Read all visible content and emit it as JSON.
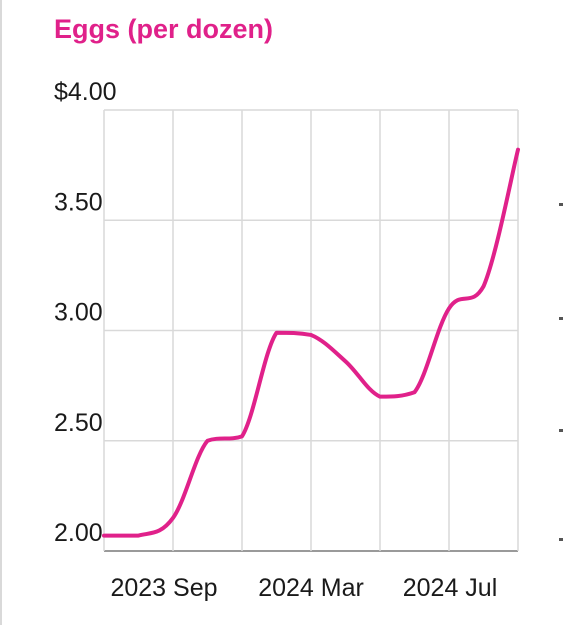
{
  "chart_data": {
    "type": "line",
    "title": "Eggs (per dozen)",
    "xlabel": "",
    "ylabel": "",
    "ylim": [
      2.0,
      4.0
    ],
    "y_ticks": [
      {
        "value": 4.0,
        "label": "$4.00"
      },
      {
        "value": 3.5,
        "label": "3.50"
      },
      {
        "value": 3.0,
        "label": "3.00"
      },
      {
        "value": 2.5,
        "label": "2.50"
      },
      {
        "value": 2.0,
        "label": "2.00"
      }
    ],
    "x_ticks": [
      "2023 Sep",
      "2024 Mar",
      "2024 Jul"
    ],
    "grid": true,
    "series": [
      {
        "color": "#e0218a",
        "points": [
          {
            "x": 0.0,
            "y": 2.07
          },
          {
            "x": 0.5,
            "y": 2.07
          },
          {
            "x": 1.0,
            "y": 2.15
          },
          {
            "x": 1.5,
            "y": 2.5
          },
          {
            "x": 2.0,
            "y": 2.52
          },
          {
            "x": 2.5,
            "y": 2.99
          },
          {
            "x": 3.0,
            "y": 2.98
          },
          {
            "x": 3.5,
            "y": 2.86
          },
          {
            "x": 4.0,
            "y": 2.7
          },
          {
            "x": 4.5,
            "y": 2.72
          },
          {
            "x": 5.0,
            "y": 3.1
          },
          {
            "x": 5.5,
            "y": 3.2
          },
          {
            "x": 6.0,
            "y": 3.82
          }
        ]
      }
    ]
  }
}
